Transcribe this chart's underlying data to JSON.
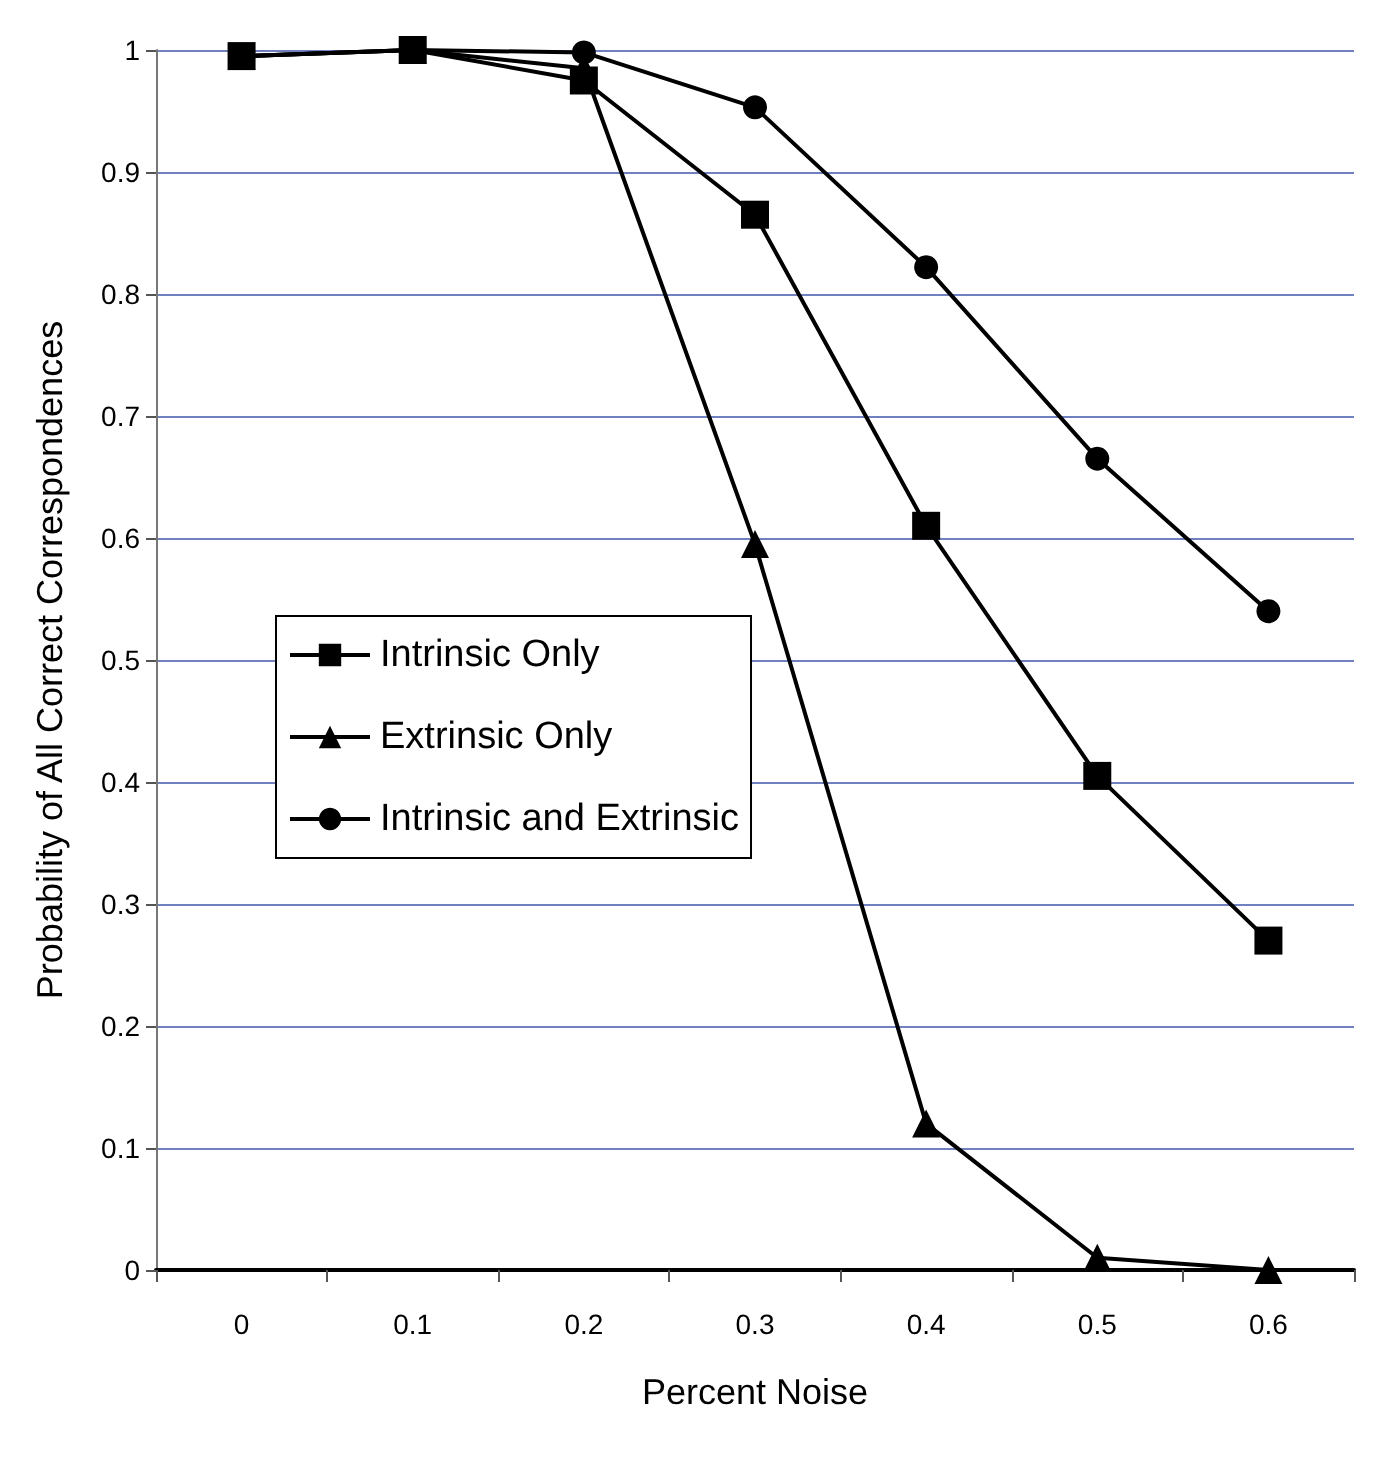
{
  "chart_data": {
    "type": "line",
    "xlabel": "Percent Noise",
    "ylabel": "Probability of All Correct Correspondences",
    "categories": [
      "0",
      "0.1",
      "0.2",
      "0.3",
      "0.4",
      "0.5",
      "0.6"
    ],
    "series": [
      {
        "name": "Intrinsic Only",
        "color": "#000000",
        "marker": "square",
        "values": [
          0.995,
          1.0,
          0.975,
          0.865,
          0.61,
          0.405,
          0.27
        ]
      },
      {
        "name": "Extrinsic Only",
        "color": "#000000",
        "marker": "triangle",
        "values": [
          0.995,
          1.0,
          0.985,
          0.595,
          0.12,
          0.01,
          0.0
        ]
      },
      {
        "name": "Intrinsic and Extrinsic",
        "color": "#000000",
        "marker": "circle",
        "values": [
          0.995,
          1.0,
          0.998,
          0.953,
          0.822,
          0.665,
          0.54
        ]
      }
    ],
    "ylim": [
      0,
      1
    ],
    "yticks": [
      0,
      0.1,
      0.2,
      0.3,
      0.4,
      0.5,
      0.6,
      0.7,
      0.8,
      0.9,
      1
    ],
    "grid": "y",
    "legend": "left",
    "line_style": "solid"
  }
}
